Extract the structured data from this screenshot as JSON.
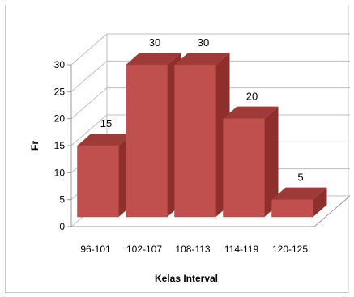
{
  "chart_data": {
    "type": "bar",
    "categories": [
      "96-101",
      "102-107",
      "108-113",
      "114-119",
      "120-125"
    ],
    "values": [
      15,
      30,
      30,
      20,
      5
    ],
    "data_labels": [
      "15",
      "30",
      "30",
      "20",
      "5"
    ],
    "title": "",
    "xlabel": "Kelas Interval",
    "ylabel": "Fr",
    "ylim": [
      0,
      30
    ],
    "y_ticks": [
      "0",
      "5",
      "10",
      "15",
      "20",
      "25",
      "30"
    ],
    "grid": true,
    "legend": "none",
    "style": "3d-column"
  },
  "colors": {
    "bar_front": "#c0504d",
    "bar_side": "#8e2f2c",
    "bar_top": "#9e3a37",
    "gridline": "#bfbfbf",
    "axis_line": "#9a9a9a"
  }
}
